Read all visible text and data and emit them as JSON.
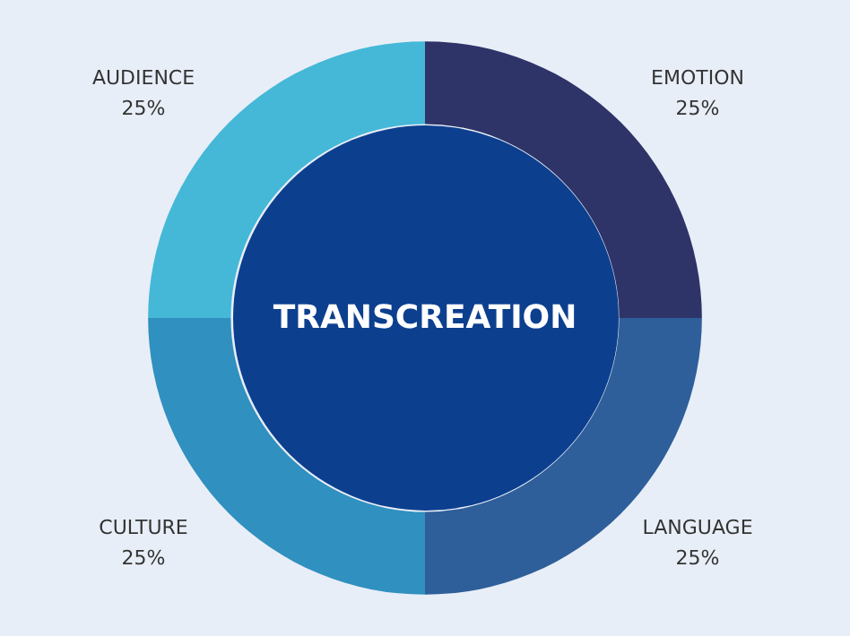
{
  "chart_data": {
    "type": "donut",
    "title": "TRANSCREATION",
    "categories": [
      "EMOTION",
      "LANGUAGE",
      "CULTURE",
      "AUDIENCE"
    ],
    "values": [
      25,
      25,
      25,
      25
    ],
    "value_labels": [
      "25%",
      "25%",
      "25%",
      "25%"
    ],
    "colors": [
      "#2e3468",
      "#2e5f9a",
      "#3090bf",
      "#45b8d8"
    ],
    "legend": false
  }
}
